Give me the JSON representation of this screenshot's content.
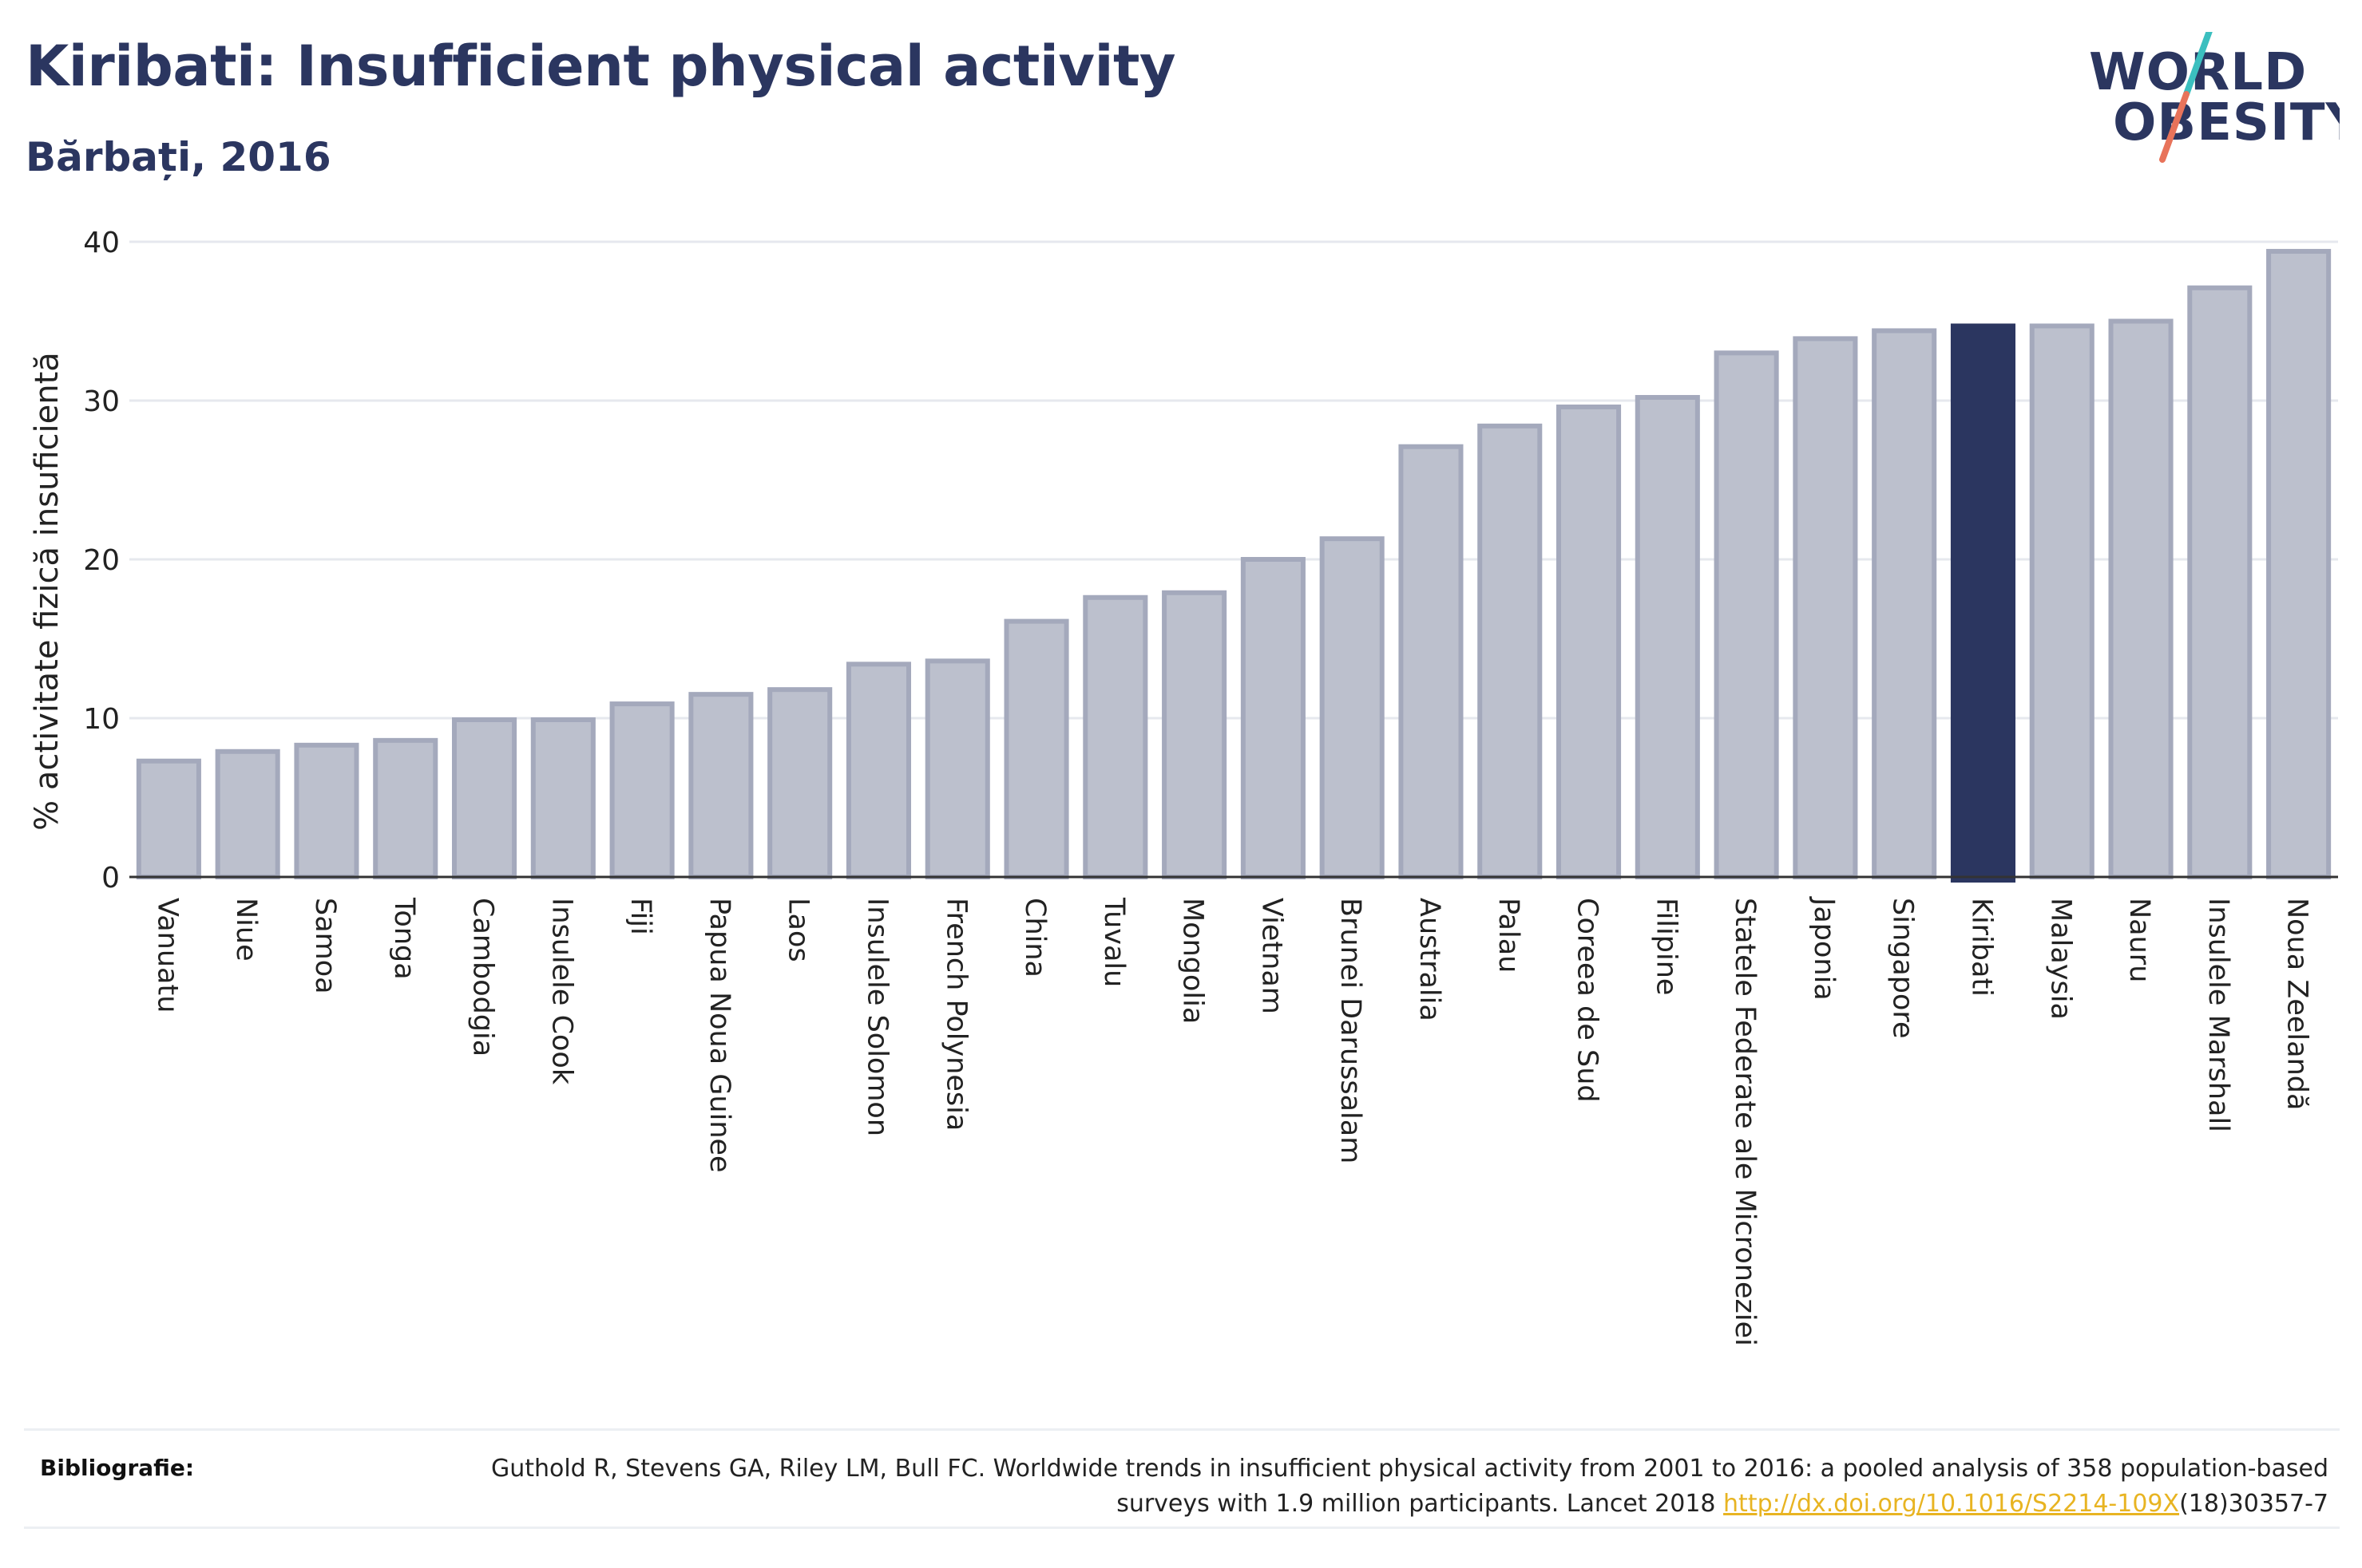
{
  "header": {
    "title": "Kiribati: Insufficient physical activity",
    "subtitle": "Bărbați, 2016"
  },
  "logo": {
    "line1": "WORLD",
    "line2": "OBESITY",
    "colors": {
      "text": "#2b3660",
      "slash_top": "#3bbfbf",
      "slash_bottom": "#e8735a"
    }
  },
  "chart_data": {
    "type": "bar",
    "title": "Kiribati: Insufficient physical activity",
    "subtitle": "Bărbați, 2016",
    "xlabel": "",
    "ylabel": "% activitate fizică insuficientă",
    "ylim": [
      0,
      40
    ],
    "yticks": [
      0,
      10,
      20,
      30,
      40
    ],
    "grid": true,
    "highlight": "Kiribati",
    "colors": {
      "bar": "#bcc0cd",
      "bar_border": "#a4a9bc",
      "highlight": "#2b3660",
      "grid": "#e6e8ee",
      "axis": "#333333"
    },
    "categories": [
      "Vanuatu",
      "Niue",
      "Samoa",
      "Tonga",
      "Cambodgia",
      "Insulele Cook",
      "Fiji",
      "Papua Noua Guinee",
      "Laos",
      "Insulele Solomon",
      "French Polynesia",
      "China",
      "Tuvalu",
      "Mongolia",
      "Vietnam",
      "Brunei Darussalam",
      "Australia",
      "Palau",
      "Coreea de Sud",
      "Filipine",
      "Statele Federate ale Microneziei",
      "Japonia",
      "Singapore",
      "Kiribati",
      "Malaysia",
      "Nauru",
      "Insulele Marshall",
      "Noua Zeelandă"
    ],
    "values": [
      7.3,
      7.9,
      8.3,
      8.6,
      9.9,
      9.9,
      10.9,
      11.5,
      11.8,
      13.4,
      13.6,
      16.1,
      17.6,
      17.9,
      20.0,
      21.3,
      27.1,
      28.4,
      29.6,
      30.2,
      33.0,
      33.9,
      34.4,
      34.7,
      34.7,
      35.0,
      37.1,
      39.4
    ]
  },
  "footer": {
    "label": "Bibliografie:",
    "citation": "Guthold R, Stevens GA, Riley LM, Bull FC. Worldwide trends in insufficient physical activity from 2001 to 2016: a pooled analysis of 358 population-based surveys with 1.9 million participants. Lancet 2018 ",
    "link_text": "http://dx.doi.org/10.1016/S2214-109X",
    "citation_tail": "(18)30357-7"
  }
}
